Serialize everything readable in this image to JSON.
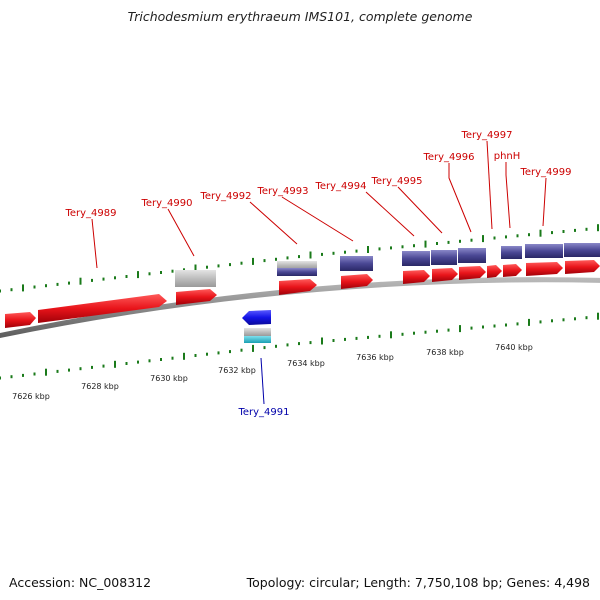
{
  "title": "Trichodesmium erythraeum IMS101, complete genome",
  "footer": {
    "accession": "Accession: NC_008312",
    "summary": "Topology: circular; Length: 7,750,108 bp; Genes: 4,498"
  },
  "colors": {
    "forward_cds": "#e8141a",
    "blast_hit": "#4a4794",
    "grey_hit": "#b4b4b4",
    "reverse_cds": "#1414e6",
    "reverse_hit": "#2cb5c8",
    "label_forward": "#cc0000",
    "label_reverse": "#0000aa",
    "ticks": "#1a7a1a",
    "backbone": "#888888"
  },
  "ticks": [
    {
      "label": "7626 kbp"
    },
    {
      "label": "7628 kbp"
    },
    {
      "label": "7630 kbp"
    },
    {
      "label": "7632 kbp"
    },
    {
      "label": "7634 kbp"
    },
    {
      "label": "7636 kbp"
    },
    {
      "label": "7638 kbp"
    },
    {
      "label": "7640 kbp"
    }
  ],
  "genes": [
    {
      "label": "Tery_4989",
      "strand": "forward"
    },
    {
      "label": "Tery_4990",
      "strand": "forward"
    },
    {
      "label": "Tery_4991",
      "strand": "reverse"
    },
    {
      "label": "Tery_4992",
      "strand": "forward"
    },
    {
      "label": "Tery_4993",
      "strand": "forward"
    },
    {
      "label": "Tery_4994",
      "strand": "forward"
    },
    {
      "label": "Tery_4995",
      "strand": "forward"
    },
    {
      "label": "Tery_4996",
      "strand": "forward"
    },
    {
      "label": "Tery_4997",
      "strand": "forward"
    },
    {
      "label": "phnH",
      "strand": "forward"
    },
    {
      "label": "Tery_4999",
      "strand": "forward"
    }
  ]
}
